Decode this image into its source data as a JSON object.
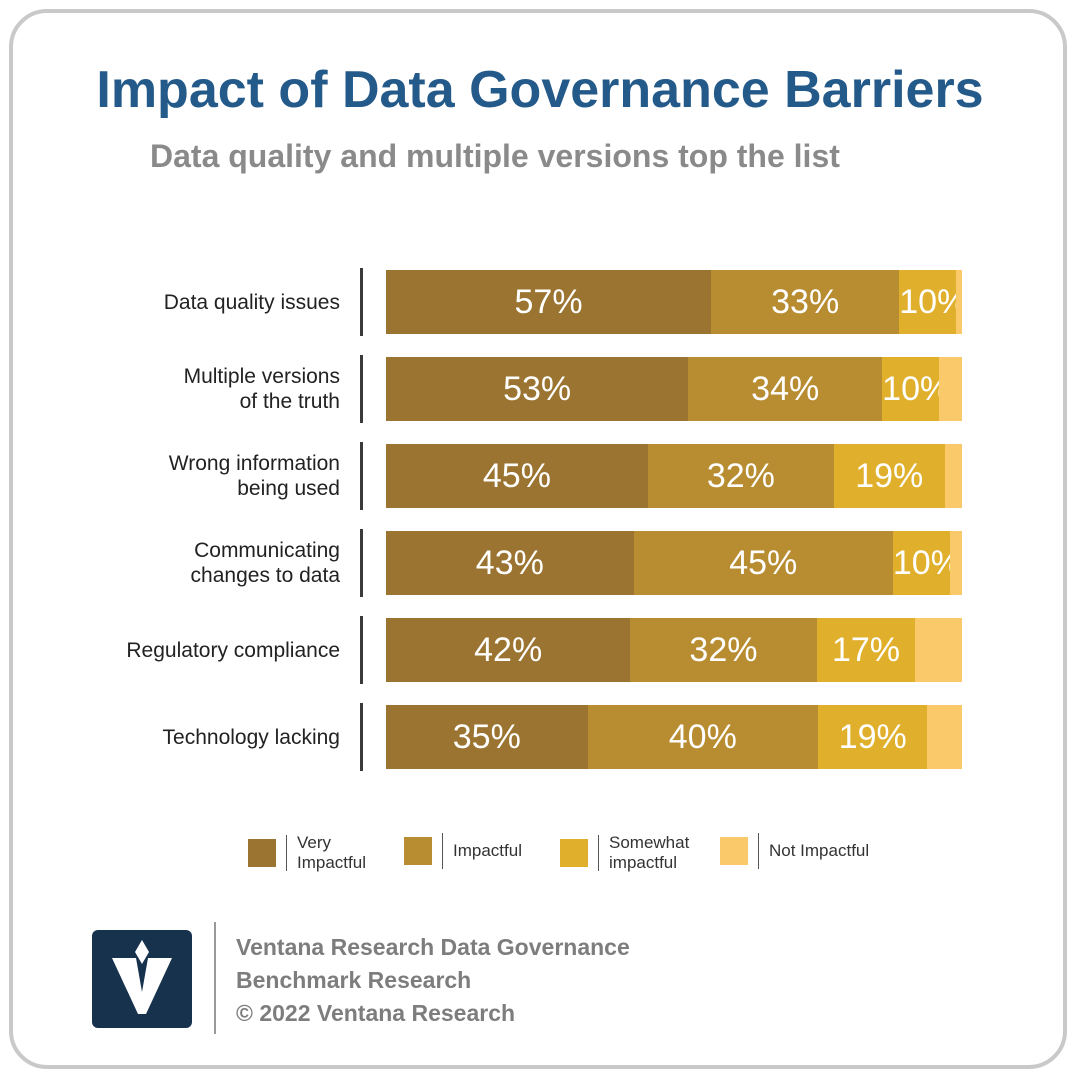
{
  "title": "Impact of Data Governance Barriers",
  "subtitle": "Data quality and multiple versions top the list",
  "colors": {
    "very_impactful": "#9a7430",
    "impactful": "#b88d32",
    "somewhat_impactful": "#e0b02c",
    "not_impactful": "#f9c96a",
    "title": "#245a8a",
    "subtitle": "#8a8a8a",
    "logo_bg": "#16324d"
  },
  "chart_data": {
    "type": "bar",
    "orientation": "horizontal",
    "stacked": true,
    "categories": [
      "Data quality issues",
      "Multiple versions\nof the truth",
      "Wrong information\nbeing used",
      "Communicating\nchanges to data",
      "Regulatory compliance",
      "Technology lacking"
    ],
    "series": [
      {
        "name": "Very Impactful",
        "values": [
          57,
          53,
          45,
          43,
          42,
          35
        ]
      },
      {
        "name": "Impactful",
        "values": [
          33,
          34,
          32,
          45,
          32,
          40
        ]
      },
      {
        "name": "Somewhat impactful",
        "values": [
          10,
          10,
          19,
          10,
          17,
          19
        ]
      },
      {
        "name": "Not Impactful",
        "values": [
          1,
          4,
          3,
          2,
          8,
          6
        ]
      }
    ],
    "data_labels": [
      [
        "57%",
        "33%",
        "10%",
        ""
      ],
      [
        "53%",
        "34%",
        "10%",
        ""
      ],
      [
        "45%",
        "32%",
        "19%",
        ""
      ],
      [
        "43%",
        "45%",
        "10%",
        ""
      ],
      [
        "42%",
        "32%",
        "17%",
        ""
      ],
      [
        "35%",
        "40%",
        "19%",
        ""
      ]
    ],
    "xlim": [
      0,
      100
    ],
    "grid": false,
    "legend_position": "bottom"
  },
  "legend": [
    {
      "label": "Very\nImpactful",
      "color_key": "very_impactful"
    },
    {
      "label": "Impactful",
      "color_key": "impactful"
    },
    {
      "label": "Somewhat\nimpactful",
      "color_key": "somewhat_impactful"
    },
    {
      "label": "Not Impactful",
      "color_key": "not_impactful"
    }
  ],
  "footer": {
    "line1": "Ventana Research Data Governance",
    "line2": "Benchmark Research",
    "line3": "© 2022 Ventana Research",
    "logo_icon": "ventana-v-logo-icon"
  }
}
